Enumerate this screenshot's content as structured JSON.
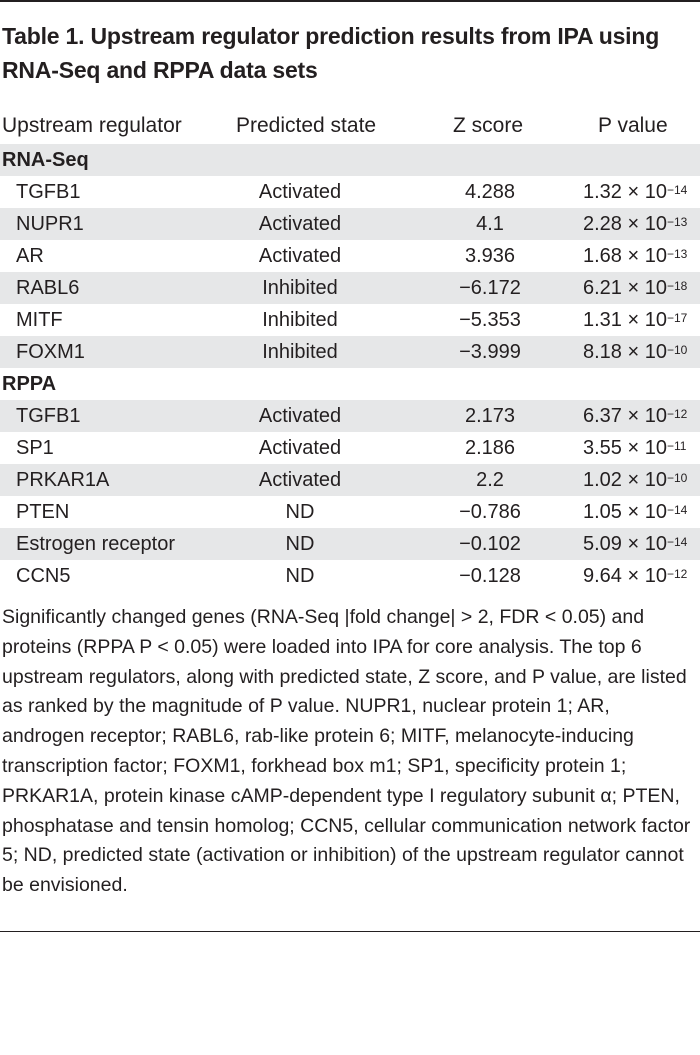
{
  "title": "Table 1. Upstream regulator prediction results from IPA using RNA-Seq and RPPA data sets",
  "headers": {
    "regulator": "Upstream regulator",
    "state": "Predicted state",
    "z": "Z score",
    "p": "P value"
  },
  "sections": [
    {
      "label": "RNA-Seq",
      "rows": [
        {
          "regulator": "TGFB1",
          "state": "Activated",
          "z": "4.288",
          "p_mantissa": "1.32 × 10",
          "p_exp": "−14"
        },
        {
          "regulator": "NUPR1",
          "state": "Activated",
          "z": "4.1",
          "p_mantissa": "2.28 × 10",
          "p_exp": "−13"
        },
        {
          "regulator": "AR",
          "state": "Activated",
          "z": "3.936",
          "p_mantissa": "1.68 × 10",
          "p_exp": "−13"
        },
        {
          "regulator": "RABL6",
          "state": "Inhibited",
          "z": "−6.172",
          "p_mantissa": "6.21 × 10",
          "p_exp": "−18"
        },
        {
          "regulator": "MITF",
          "state": "Inhibited",
          "z": "−5.353",
          "p_mantissa": "1.31 × 10",
          "p_exp": "−17"
        },
        {
          "regulator": "FOXM1",
          "state": "Inhibited",
          "z": "−3.999",
          "p_mantissa": "8.18 × 10",
          "p_exp": "−10"
        }
      ]
    },
    {
      "label": "RPPA",
      "rows": [
        {
          "regulator": "TGFB1",
          "state": "Activated",
          "z": "2.173",
          "p_mantissa": "6.37 × 10",
          "p_exp": "−12"
        },
        {
          "regulator": "SP1",
          "state": "Activated",
          "z": "2.186",
          "p_mantissa": "3.55 × 10",
          "p_exp": "−11"
        },
        {
          "regulator": "PRKAR1A",
          "state": "Activated",
          "z": "2.2",
          "p_mantissa": "1.02 × 10",
          "p_exp": "−10"
        },
        {
          "regulator": "PTEN",
          "state": "ND",
          "z": "−0.786",
          "p_mantissa": "1.05 × 10",
          "p_exp": "−14"
        },
        {
          "regulator": "Estrogen receptor",
          "state": "ND",
          "z": "−0.102",
          "p_mantissa": "5.09 × 10",
          "p_exp": "−14"
        },
        {
          "regulator": "CCN5",
          "state": "ND",
          "z": "−0.128",
          "p_mantissa": "9.64 × 10",
          "p_exp": "−12"
        }
      ]
    }
  ],
  "footnote": "Significantly changed genes (RNA-Seq |fold change| > 2, FDR < 0.05) and proteins (RPPA P < 0.05) were loaded into IPA for core analysis. The top 6 upstream regulators, along with predicted state, Z score, and P value, are listed as ranked by the magnitude of P value. NUPR1, nuclear protein 1; AR, androgen receptor; RABL6, rab-like protein 6; MITF, melanocyte-inducing transcription factor; FOXM1, forkhead box m1; SP1, specificity protein 1; PRKAR1A, protein kinase cAMP-dependent type I regulatory subunit α; PTEN, phosphatase and tensin homolog; CCN5, cellular communication network factor 5; ND, predicted state (activation or inhibition) of the upstream regulator cannot be envisioned.",
  "colors": {
    "text": "#231f20",
    "shade": "#e6e7e8",
    "rule": "#231f20"
  }
}
